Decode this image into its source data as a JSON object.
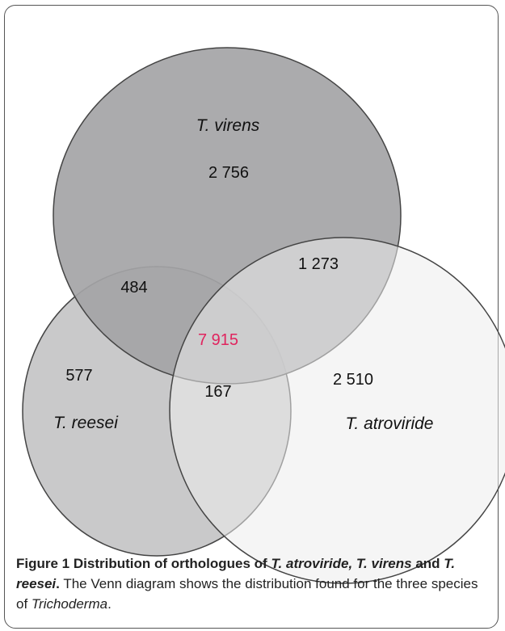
{
  "diagram": {
    "type": "venn",
    "sets": [
      {
        "id": "virens",
        "label": "T. virens",
        "only_count": "2 756",
        "fill": "#a9a9ab"
      },
      {
        "id": "reesei",
        "label": "T. reesei",
        "only_count": "577",
        "fill": "#c9c9ca"
      },
      {
        "id": "atroviride",
        "label": "T. atroviride",
        "only_count": "2 510",
        "fill": "#e4e4e5"
      }
    ],
    "intersections": {
      "virens_reesei": "484",
      "virens_atroviride": "1 273",
      "reesei_atroviride": "167",
      "all_three": "7 915"
    },
    "colors": {
      "all_three_highlight": "#e0245e",
      "outline": "#444444"
    }
  },
  "caption": {
    "figure_number": "Figure 1",
    "title_prefix": "Distribution of orthologues of ",
    "title_species_1": "T. atroviride, T. virens",
    "title_and": "and",
    "title_species_2": "T. reesei",
    "title_end": ".",
    "body_text": " The Venn diagram shows the distribution found for the three species of ",
    "genus": "Trichoderma",
    "body_end": "."
  }
}
